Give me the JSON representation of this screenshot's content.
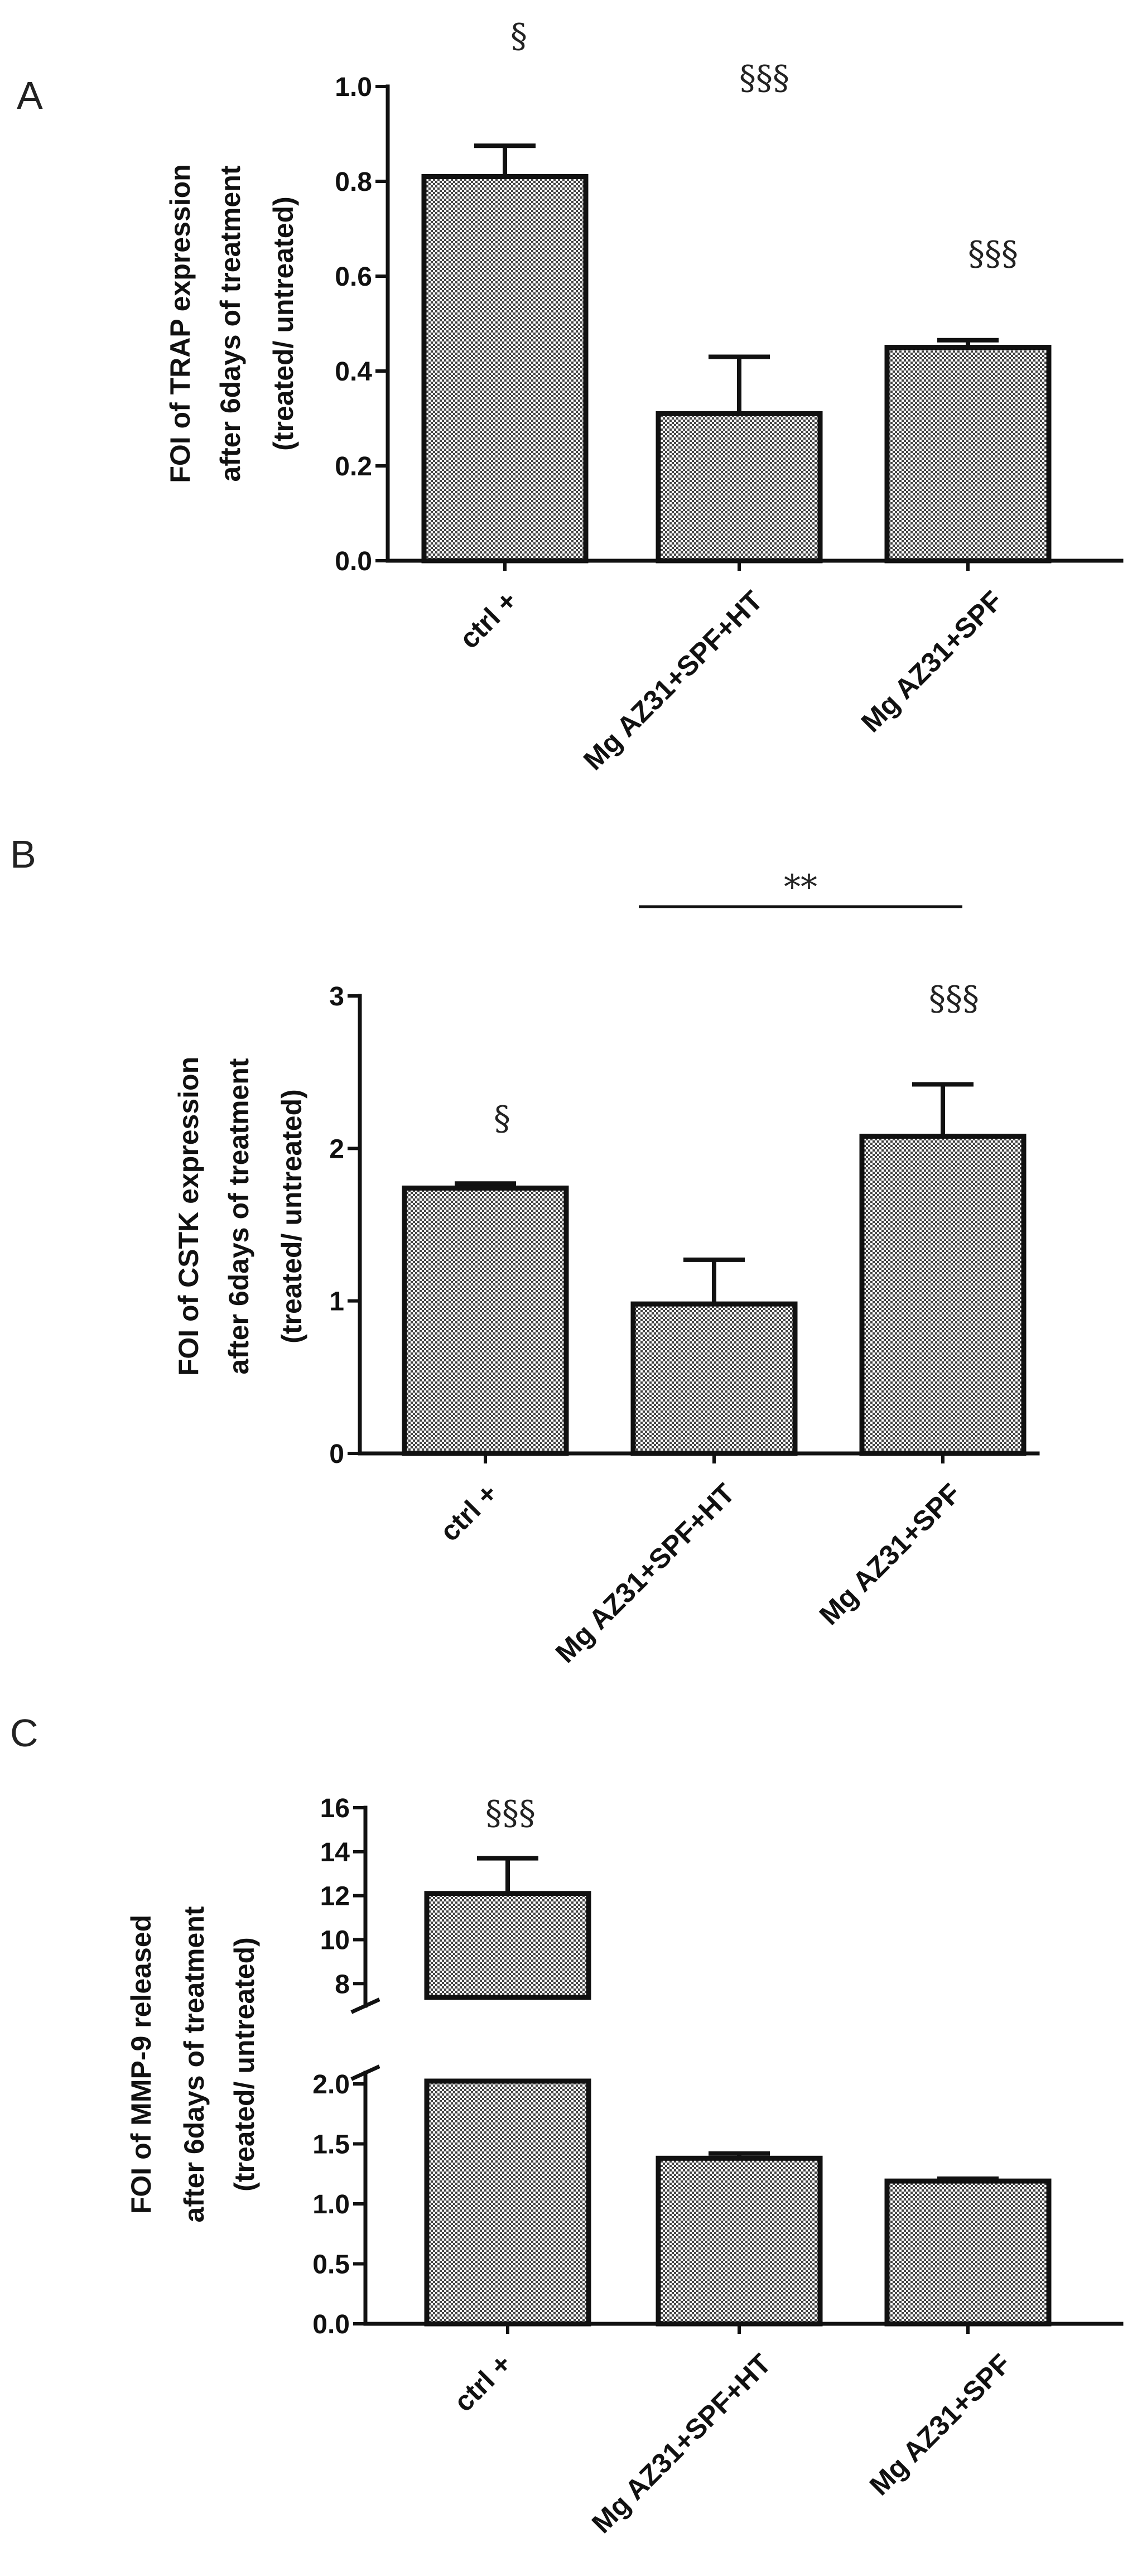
{
  "chart_data": [
    {
      "panel": "A",
      "type": "bar",
      "ylabel": [
        "FOI of TRAP expression",
        "after 6days of treatment",
        "(treated/ untreated)"
      ],
      "categories": [
        "ctrl +",
        "Mg AZ31+SPF+HT",
        "Mg AZ31+SPF"
      ],
      "values": [
        0.81,
        0.31,
        0.45
      ],
      "error_upper": [
        0.875,
        0.43,
        0.465
      ],
      "annotations": [
        "§",
        "§§§",
        "§§§"
      ],
      "ylim": [
        0,
        1.0
      ],
      "yticks": [
        0.0,
        0.2,
        0.4,
        0.6,
        0.8,
        1.0
      ],
      "ytick_labels": [
        "0.0",
        "0.2",
        "0.4",
        "0.6",
        "0.8",
        "1.0"
      ]
    },
    {
      "panel": "B",
      "type": "bar",
      "ylabel": [
        "FOI of CSTK expression",
        "after 6days of treatment",
        "(treated/ untreated)"
      ],
      "categories": [
        "ctrl +",
        "Mg AZ31+SPF+HT",
        "Mg AZ31+SPF"
      ],
      "values": [
        1.74,
        0.98,
        2.08
      ],
      "error_upper": [
        1.77,
        1.27,
        2.42
      ],
      "annotations": [
        "§",
        "",
        "§§§"
      ],
      "significance": {
        "label": "**",
        "from": 1,
        "to": 2
      },
      "ylim": [
        0,
        3
      ],
      "yticks": [
        0,
        1,
        2,
        3
      ],
      "ytick_labels": [
        "0",
        "1",
        "2",
        "3"
      ]
    },
    {
      "panel": "C",
      "type": "bar",
      "axis_break": true,
      "ylabel": [
        "FOI of MMP-9 released",
        "after 6days of treatment",
        "(treated/ untreated)"
      ],
      "categories": [
        "ctrl +",
        "Mg AZ31+SPF+HT",
        "Mg AZ31+SPF"
      ],
      "values": [
        12.1,
        1.38,
        1.19
      ],
      "error_upper": [
        13.7,
        1.42,
        1.21
      ],
      "annotations": [
        "§§§",
        "",
        ""
      ],
      "ylim_lower": [
        0,
        2.0
      ],
      "ylim_upper": [
        7.5,
        16
      ],
      "yticks_lower": [
        0.0,
        0.5,
        1.0,
        1.5,
        2.0
      ],
      "ytick_labels_lower": [
        "0.0",
        "0.5",
        "1.0",
        "1.5",
        "2.0"
      ],
      "yticks_upper": [
        8,
        10,
        12,
        14,
        16
      ],
      "ytick_labels_upper": [
        "8",
        "10",
        "12",
        "14",
        "16"
      ]
    }
  ]
}
